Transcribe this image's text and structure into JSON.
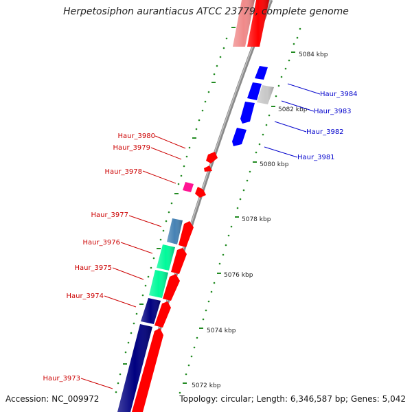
{
  "title": "Herpetosiphon aurantiacus ATCC 23779, complete genome",
  "footer": {
    "accession": "Accession: NC_009972",
    "stats": "Topology: circular; Length: 6,346,587 bp; Genes: 5,042"
  },
  "colors": {
    "axis": "#888888",
    "tick": "#228b22",
    "left_label": "#cc0000",
    "right_label": "#0000cc"
  },
  "backbone_ticks": [
    {
      "label": "5084 kbp"
    },
    {
      "label": "5082 kbp"
    },
    {
      "label": "5080 kbp"
    },
    {
      "label": "5078 kbp"
    },
    {
      "label": "5076 kbp"
    },
    {
      "label": "5074 kbp"
    },
    {
      "label": "5072 kbp"
    }
  ],
  "left_labels": [
    {
      "text": "Haur_3980",
      "color": "#cc0000"
    },
    {
      "text": "Haur_3979",
      "color": "#cc0000"
    },
    {
      "text": "Haur_3978",
      "color": "#cc0000"
    },
    {
      "text": "Haur_3977",
      "color": "#cc0000"
    },
    {
      "text": "Haur_3976",
      "color": "#cc0000"
    },
    {
      "text": "Haur_3975",
      "color": "#cc0000"
    },
    {
      "text": "Haur_3974",
      "color": "#cc0000"
    },
    {
      "text": "Haur_3973",
      "color": "#cc0000"
    }
  ],
  "right_labels": [
    {
      "text": "Haur_3984",
      "color": "#0000cc"
    },
    {
      "text": "Haur_3983",
      "color": "#0000cc"
    },
    {
      "text": "Haur_3982",
      "color": "#0000cc"
    },
    {
      "text": "Haur_3981",
      "color": "#0000cc"
    }
  ],
  "genes": [
    {
      "name": "red-cds-top",
      "color": "#ff0000"
    },
    {
      "name": "pink-cds-top",
      "color": "#f08a8a"
    },
    {
      "name": "blue-cds-1",
      "color": "#0000ff"
    },
    {
      "name": "blue-cds-2",
      "color": "#0000ff"
    },
    {
      "name": "grey-cds",
      "color": "#c8c8c8"
    },
    {
      "name": "blue-cds-3",
      "color": "#0000ff"
    },
    {
      "name": "blue-cds-4",
      "color": "#0000ff"
    },
    {
      "name": "red-cds-3980",
      "color": "#ff0000"
    },
    {
      "name": "red-cds-3979",
      "color": "#ff0000"
    },
    {
      "name": "magenta-cds-3978",
      "color": "#ff1493"
    },
    {
      "name": "red-cds-3978b",
      "color": "#ff0000"
    },
    {
      "name": "steelblue-cds-3977",
      "color": "#4682b4"
    },
    {
      "name": "red-cds-3977",
      "color": "#ff0000"
    },
    {
      "name": "green-cds-3976",
      "color": "#00fa9a"
    },
    {
      "name": "red-cds-3976",
      "color": "#ff0000"
    },
    {
      "name": "green-cds-3975",
      "color": "#00fa9a"
    },
    {
      "name": "red-cds-3975",
      "color": "#ff0000"
    },
    {
      "name": "navy-cds-3974",
      "color": "#000080"
    },
    {
      "name": "red-cds-3974",
      "color": "#ff0000"
    },
    {
      "name": "navy-cds-3973",
      "color": "#000080"
    },
    {
      "name": "red-cds-3973",
      "color": "#ff0000"
    }
  ]
}
